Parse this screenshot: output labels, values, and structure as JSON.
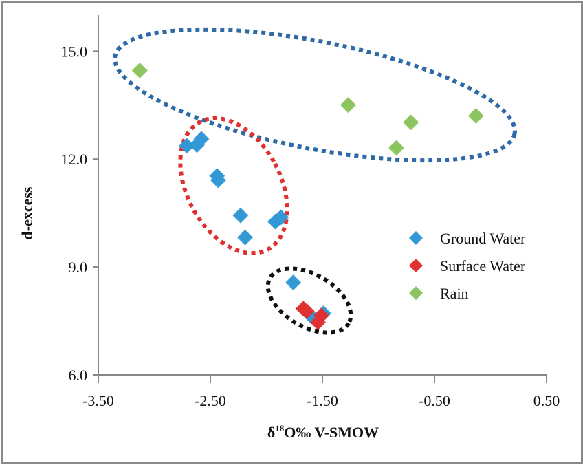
{
  "chart_data": {
    "type": "scatter",
    "title": "",
    "xlabel": "δ18O‰ V-SMOW",
    "xlabel_parts": {
      "prefix": "δ",
      "sup": "18",
      "suffix": "O‰ V-SMOW"
    },
    "ylabel": "d-excess",
    "xlim": [
      -3.5,
      0.5
    ],
    "ylim": [
      6.0,
      16.0
    ],
    "x_ticks": [
      -3.5,
      -2.5,
      -1.5,
      -0.5,
      0.5
    ],
    "x_tick_labels": [
      "-3.50",
      "-2.50",
      "-1.50",
      "-0.50",
      "0.50"
    ],
    "y_ticks": [
      6.0,
      9.0,
      12.0,
      15.0
    ],
    "y_tick_labels": [
      "6.0",
      "9.0",
      "12.0",
      "15.0"
    ],
    "grid": false,
    "legend_position": "right",
    "series": [
      {
        "name": "Ground Water",
        "color": "#3399d6",
        "marker": "diamond",
        "points": [
          [
            -2.71,
            12.37
          ],
          [
            -2.62,
            12.39
          ],
          [
            -2.58,
            12.56
          ],
          [
            -2.44,
            11.53
          ],
          [
            -2.43,
            11.41
          ],
          [
            -2.23,
            10.43
          ],
          [
            -2.19,
            9.82
          ],
          [
            -1.92,
            10.26
          ],
          [
            -1.87,
            10.38
          ],
          [
            -1.76,
            8.57
          ],
          [
            -1.6,
            7.63
          ],
          [
            -1.49,
            7.71
          ]
        ]
      },
      {
        "name": "Surface Water",
        "color": "#e03030",
        "marker": "diamond",
        "points": [
          [
            -1.67,
            7.84
          ],
          [
            -1.64,
            7.77
          ],
          [
            -1.51,
            7.65
          ],
          [
            -1.54,
            7.46
          ]
        ]
      },
      {
        "name": "Rain",
        "color": "#8cc460",
        "marker": "diamond",
        "points": [
          [
            -3.13,
            14.46
          ],
          [
            -1.27,
            13.5
          ],
          [
            -0.71,
            13.02
          ],
          [
            -0.84,
            12.31
          ],
          [
            -0.13,
            13.2
          ]
        ]
      }
    ],
    "annotations": [
      {
        "type": "dotted-ellipse",
        "color": "#2e6aa8",
        "encloses": "Rain"
      },
      {
        "type": "dotted-ellipse",
        "color": "#e03030",
        "encloses": "Ground Water (upper cluster)"
      },
      {
        "type": "dotted-ellipse",
        "color": "#111111",
        "encloses": "Surface Water and nearby Ground Water"
      }
    ]
  }
}
